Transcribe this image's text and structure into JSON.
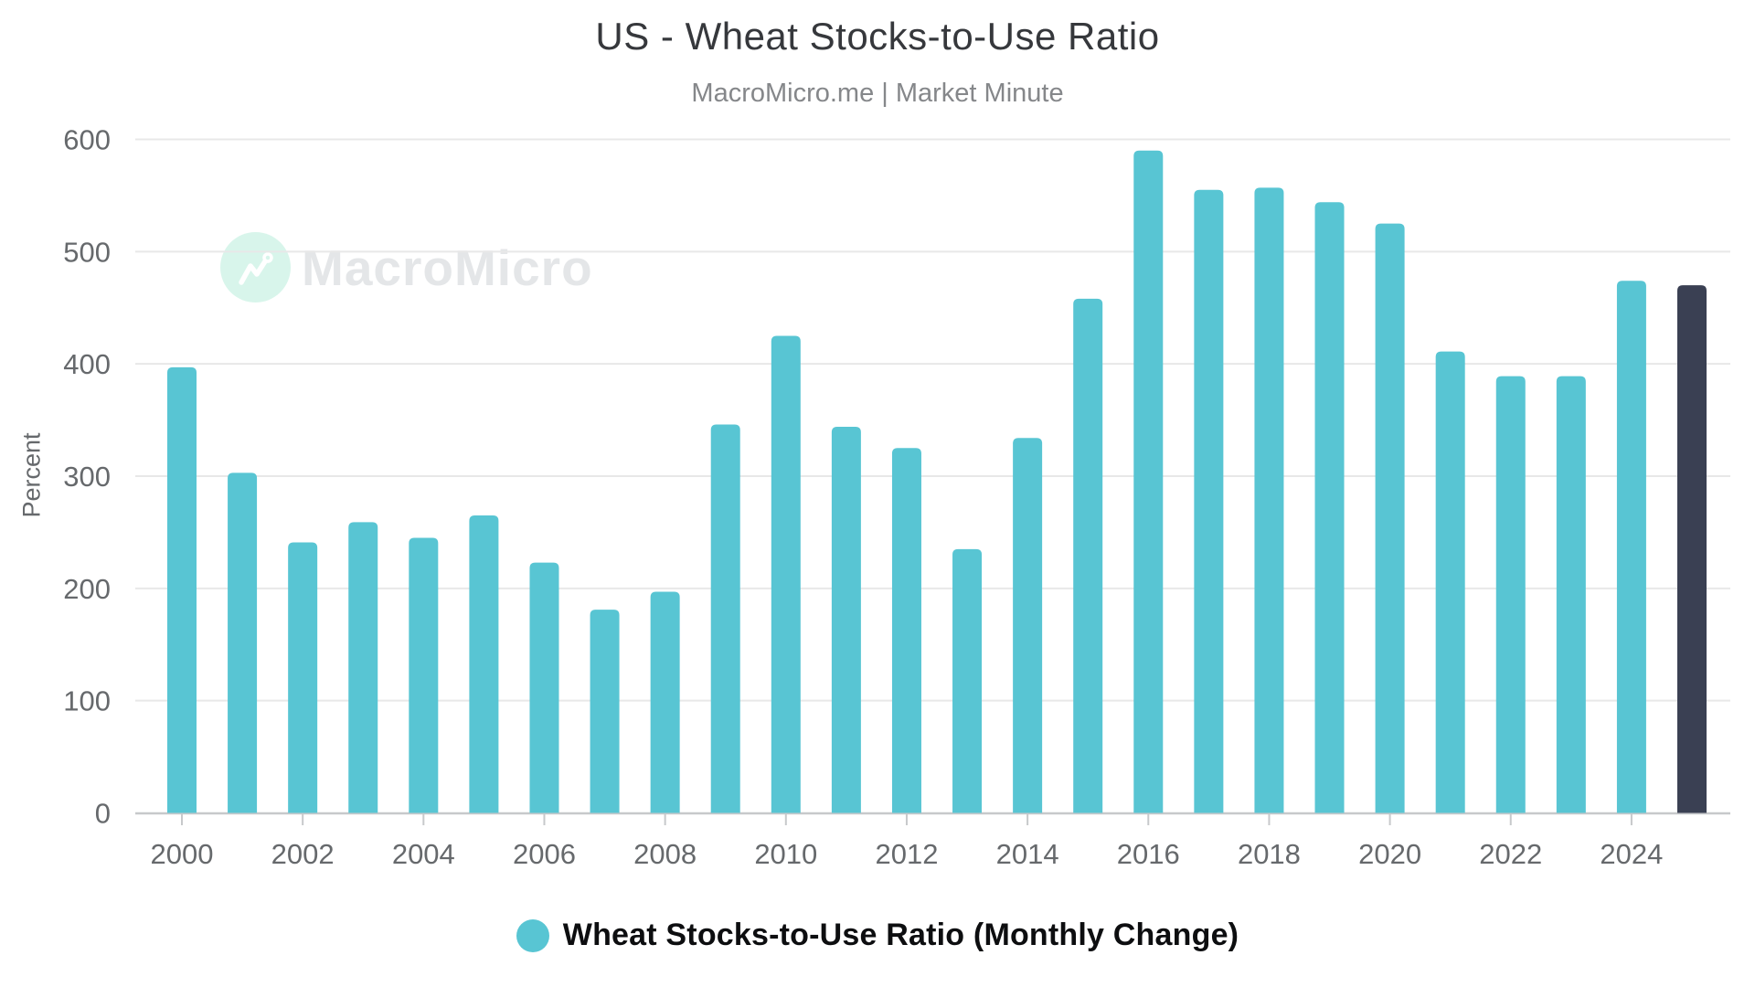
{
  "header": {
    "title": "US - Wheat Stocks-to-Use Ratio",
    "subtitle": "MacroMicro.me | Market Minute"
  },
  "watermark": {
    "brand": "MacroMicro",
    "icon": "macromicro-mountain-line-logo"
  },
  "axes": {
    "y_label": "Percent",
    "y_ticks": [
      0,
      100,
      200,
      300,
      400,
      500,
      600
    ],
    "x_ticks": [
      2000,
      2002,
      2004,
      2006,
      2008,
      2010,
      2012,
      2014,
      2016,
      2018,
      2020,
      2022,
      2024
    ]
  },
  "legend": {
    "items": [
      {
        "label": "Wheat Stocks-to-Use Ratio (Monthly Change)",
        "marker": "circle",
        "color": "#58c5d3"
      }
    ]
  },
  "colors": {
    "bar": "#58c5d3",
    "bar_highlight": "#3a4053",
    "grid": "#e8e8e8",
    "axis_line": "#c7c9cb",
    "tick_text": "#66696c",
    "title_text": "#36383c",
    "subtitle_text": "#85878a",
    "watermark_circle": "#d8f5eb",
    "watermark_text": "#e4e6e8"
  },
  "chart_data": {
    "type": "bar",
    "title": "US - Wheat Stocks-to-Use Ratio",
    "subtitle": "MacroMicro.me | Market Minute",
    "xlabel": "",
    "ylabel": "Percent",
    "ylim": [
      0,
      600
    ],
    "grid": true,
    "legend_position": "bottom",
    "categories": [
      2000,
      2001,
      2002,
      2003,
      2004,
      2005,
      2006,
      2007,
      2008,
      2009,
      2010,
      2011,
      2012,
      2013,
      2014,
      2015,
      2016,
      2017,
      2018,
      2019,
      2020,
      2021,
      2022,
      2023,
      2024,
      2025
    ],
    "series": [
      {
        "name": "Wheat Stocks-to-Use Ratio (Monthly Change)",
        "values": [
          397,
          303,
          241,
          259,
          245,
          265,
          223,
          181,
          197,
          346,
          425,
          344,
          325,
          235,
          334,
          458,
          590,
          555,
          557,
          544,
          525,
          411,
          389,
          389,
          474,
          470
        ]
      }
    ],
    "highlight_last_bar": true
  }
}
